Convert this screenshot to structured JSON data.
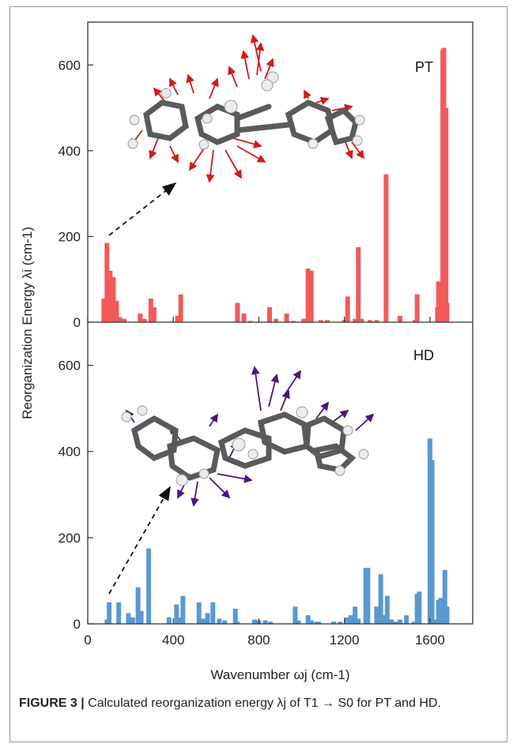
{
  "caption": {
    "label": "FIGURE 3 |",
    "text": "Calculated reorganization energy λj of T1 → S0 for PT and HD."
  },
  "chart_data": [
    {
      "type": "bar",
      "panel_label": "PT",
      "color": "#f25a5a",
      "xlim": [
        0,
        1800
      ],
      "ylim": [
        0,
        700
      ],
      "yticks": [
        0,
        200,
        400,
        600
      ],
      "x": [
        75,
        90,
        105,
        120,
        135,
        150,
        170,
        245,
        265,
        295,
        310,
        420,
        435,
        700,
        730,
        760,
        850,
        880,
        930,
        960,
        1010,
        1030,
        1045,
        1090,
        1120,
        1200,
        1215,
        1250,
        1265,
        1280,
        1320,
        1350,
        1395,
        1460,
        1530,
        1540,
        1635,
        1640,
        1660,
        1665,
        1675,
        1680
      ],
      "values": [
        55,
        185,
        120,
        105,
        50,
        12,
        8,
        20,
        8,
        55,
        35,
        15,
        65,
        45,
        20,
        3,
        35,
        8,
        20,
        3,
        8,
        125,
        120,
        5,
        5,
        5,
        60,
        8,
        175,
        8,
        5,
        5,
        345,
        15,
        5,
        65,
        35,
        95,
        635,
        640,
        500,
        45
      ]
    },
    {
      "type": "bar",
      "panel_label": "HD",
      "color": "#5b98cf",
      "xlim": [
        0,
        1800
      ],
      "ylim": [
        0,
        700
      ],
      "yticks": [
        0,
        200,
        400,
        600
      ],
      "x": [
        90,
        100,
        145,
        190,
        210,
        235,
        250,
        285,
        380,
        415,
        430,
        445,
        520,
        540,
        560,
        585,
        615,
        640,
        690,
        700,
        780,
        800,
        830,
        855,
        970,
        985,
        1030,
        1045,
        1070,
        1080,
        1150,
        1180,
        1210,
        1230,
        1250,
        1265,
        1300,
        1310,
        1350,
        1370,
        1385,
        1400,
        1420,
        1440,
        1460,
        1490,
        1525,
        1540,
        1550,
        1600,
        1610,
        1620,
        1640,
        1650,
        1670,
        1680
      ],
      "values": [
        10,
        50,
        50,
        25,
        15,
        85,
        30,
        175,
        15,
        45,
        15,
        65,
        50,
        12,
        25,
        50,
        12,
        8,
        35,
        5,
        10,
        8,
        8,
        5,
        40,
        8,
        20,
        8,
        5,
        5,
        5,
        5,
        15,
        20,
        40,
        12,
        130,
        130,
        40,
        115,
        20,
        65,
        10,
        5,
        10,
        20,
        5,
        70,
        75,
        430,
        380,
        10,
        55,
        60,
        125,
        40
      ]
    }
  ],
  "xaxis": {
    "ticks": [
      0,
      400,
      800,
      1200,
      1600
    ],
    "label": "Wavenumber ωj (cm-1)"
  },
  "yaxis": {
    "label": "Reorganization Energy λi (cm-1)"
  }
}
